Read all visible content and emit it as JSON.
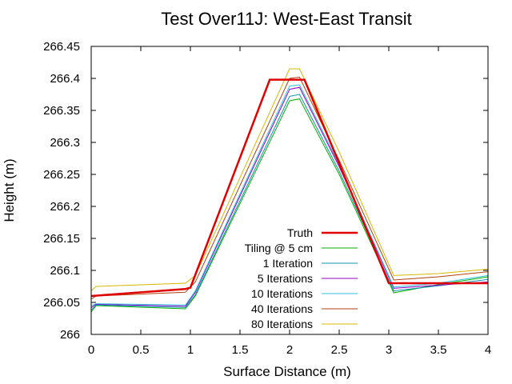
{
  "chart_data": {
    "type": "line",
    "title": "Test Over11J: West-East Transit",
    "xlabel": "Surface Distance (m)",
    "ylabel": "Height (m)",
    "xlim": [
      0,
      4
    ],
    "ylim": [
      266.0,
      266.45
    ],
    "x_ticks": [
      "0",
      "0.5",
      "1",
      "1.5",
      "2",
      "2.5",
      "3",
      "3.5",
      "4"
    ],
    "y_ticks": [
      "266",
      "266.05",
      "266.1",
      "266.15",
      "266.2",
      "266.25",
      "266.3",
      "266.35",
      "266.4",
      "266.45"
    ],
    "grid": false,
    "legend_position": "bottom-center",
    "series": [
      {
        "name": "Truth",
        "color": "#e00000",
        "x": [
          0,
          0.95,
          1.0,
          1.8,
          2.15,
          3.0,
          3.5,
          4.0
        ],
        "y": [
          266.06,
          266.071,
          266.073,
          266.398,
          266.398,
          266.08,
          266.08,
          266.08
        ]
      },
      {
        "name": "Tiling @ 5 cm",
        "color": "#00b000",
        "x": [
          0,
          0.05,
          0.95,
          1.05,
          2.0,
          2.1,
          2.5,
          3.05,
          3.5,
          4.0
        ],
        "y": [
          266.035,
          266.045,
          266.04,
          266.06,
          266.365,
          266.368,
          266.25,
          266.065,
          266.078,
          266.09
        ]
      },
      {
        "name": "1 Iteration",
        "color": "#1090b0",
        "x": [
          0,
          0.05,
          0.95,
          1.05,
          2.0,
          2.1,
          2.5,
          3.05,
          3.5,
          4.0
        ],
        "y": [
          266.038,
          266.046,
          266.042,
          266.062,
          266.372,
          266.375,
          266.255,
          266.068,
          266.076,
          266.086
        ]
      },
      {
        "name": "5 Iterations",
        "color": "#9000c8",
        "x": [
          0,
          0.05,
          0.95,
          1.05,
          2.0,
          2.1,
          2.5,
          3.05,
          3.5,
          4.0
        ],
        "y": [
          266.042,
          266.047,
          266.044,
          266.066,
          266.383,
          266.386,
          266.262,
          266.072,
          266.077,
          266.082
        ]
      },
      {
        "name": "10 Iterations",
        "color": "#30c0e0",
        "x": [
          0,
          0.05,
          0.95,
          1.05,
          2.0,
          2.1,
          2.5,
          3.05,
          3.5,
          4.0
        ],
        "y": [
          266.045,
          266.048,
          266.046,
          266.068,
          266.388,
          266.39,
          266.265,
          266.074,
          266.08,
          266.092
        ]
      },
      {
        "name": "40 Iterations",
        "color": "#b04010",
        "x": [
          0,
          0.05,
          0.95,
          1.05,
          2.0,
          2.1,
          2.5,
          3.05,
          3.5,
          4.0
        ],
        "y": [
          266.055,
          266.06,
          266.066,
          266.082,
          266.4,
          266.402,
          266.272,
          266.085,
          266.09,
          266.098
        ]
      },
      {
        "name": "80 Iterations",
        "color": "#d8b800",
        "x": [
          0,
          0.05,
          0.95,
          1.05,
          2.0,
          2.1,
          2.5,
          3.05,
          3.5,
          4.0
        ],
        "y": [
          266.068,
          266.075,
          266.08,
          266.092,
          266.415,
          266.415,
          266.285,
          266.092,
          266.095,
          266.102
        ]
      }
    ]
  }
}
